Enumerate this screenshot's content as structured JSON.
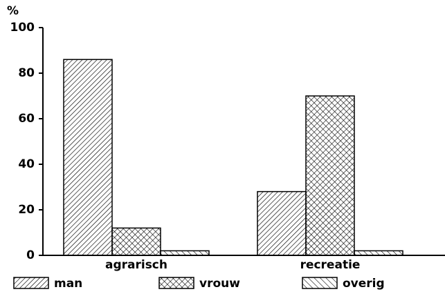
{
  "chart_data": {
    "type": "bar",
    "y_label": "%",
    "categories": [
      "agrarisch",
      "recreatie"
    ],
    "series": [
      {
        "name": "man",
        "color": "#000000",
        "hatch": "diagonal",
        "values": [
          86,
          28
        ]
      },
      {
        "name": "vrouw",
        "color": "#000000",
        "hatch": "cross",
        "values": [
          12,
          70
        ]
      },
      {
        "name": "overig",
        "color": "#000000",
        "hatch": "backdiagonal",
        "values": [
          2,
          2
        ]
      }
    ],
    "ylim": [
      0,
      100
    ],
    "yticks": [
      0,
      20,
      40,
      60,
      80,
      100
    ],
    "legend": "bottom"
  }
}
